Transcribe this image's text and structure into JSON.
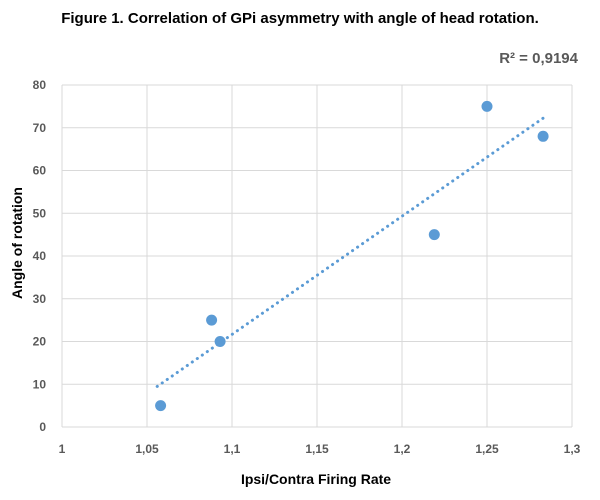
{
  "title": "Figure 1. Correlation of GPi asymmetry with angle of head rotation.",
  "chart_data": {
    "type": "scatter",
    "title": "Figure 1. Correlation of GPi asymmetry with angle of head rotation.",
    "xlabel": "Ipsi/Contra Firing Rate",
    "ylabel": "Angle of rotation",
    "xlim": [
      1,
      1.3
    ],
    "ylim": [
      0,
      80
    ],
    "x_ticks": [
      1,
      1.05,
      1.1,
      1.15,
      1.2,
      1.25,
      1.3
    ],
    "x_tick_labels": [
      "1",
      "1,05",
      "1,1",
      "1,15",
      "1,2",
      "1,25",
      "1,3"
    ],
    "y_ticks": [
      0,
      10,
      20,
      30,
      40,
      50,
      60,
      70,
      80
    ],
    "y_tick_labels": [
      "0",
      "10",
      "20",
      "30",
      "40",
      "50",
      "60",
      "70",
      "80"
    ],
    "grid": true,
    "points": [
      {
        "x": 1.058,
        "y": 5
      },
      {
        "x": 1.088,
        "y": 25
      },
      {
        "x": 1.093,
        "y": 20
      },
      {
        "x": 1.219,
        "y": 45
      },
      {
        "x": 1.25,
        "y": 75
      },
      {
        "x": 1.283,
        "y": 68
      }
    ],
    "trendline": {
      "style": "dotted",
      "x_start": 1.056,
      "x_end": 1.283,
      "r2_label": "R² = 0,9194"
    },
    "colors": {
      "marker": "#5B9BD5",
      "trendline": "#5B9BD5",
      "grid": "#D9D9D9"
    }
  }
}
